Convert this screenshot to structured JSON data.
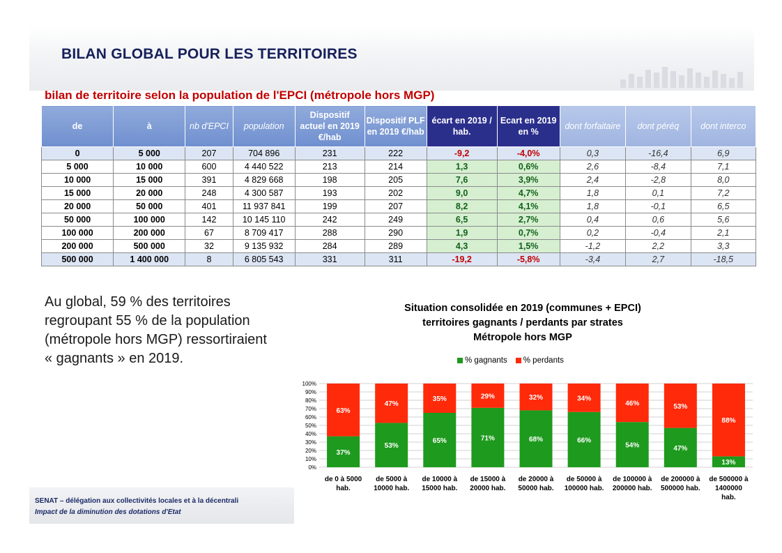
{
  "header": {
    "title": "BILAN GLOBAL POUR LES TERRITOIRES"
  },
  "subtitle": "bilan de territoire selon la population de l'EPCI (métropole hors MGP)",
  "table": {
    "headers": [
      "de",
      "à",
      "nb d'EPCI",
      "population",
      "Dispositif actuel en 2019 €/hab",
      "Dispositif PLF en 2019 €/hab",
      "écart en 2019 / hab.",
      "Ecart en 2019 en %",
      "dont forfaitaire",
      "dont péréq",
      "dont interco"
    ],
    "rows": [
      [
        "0",
        "5 000",
        "207",
        "704 896",
        "231",
        "222",
        "-9,2",
        "-4,0%",
        "0,3",
        "-16,4",
        "6,9"
      ],
      [
        "5 000",
        "10 000",
        "600",
        "4 440 522",
        "213",
        "214",
        "1,3",
        "0,6%",
        "2,6",
        "-8,4",
        "7,1"
      ],
      [
        "10 000",
        "15 000",
        "391",
        "4 829 668",
        "198",
        "205",
        "7,6",
        "3,9%",
        "2,4",
        "-2,8",
        "8,0"
      ],
      [
        "15 000",
        "20 000",
        "248",
        "4 300 587",
        "193",
        "202",
        "9,0",
        "4,7%",
        "1,8",
        "0,1",
        "7,2"
      ],
      [
        "20 000",
        "50 000",
        "401",
        "11 937 841",
        "199",
        "207",
        "8,2",
        "4,1%",
        "1,8",
        "-0,1",
        "6,5"
      ],
      [
        "50 000",
        "100 000",
        "142",
        "10 145 110",
        "242",
        "249",
        "6,5",
        "2,7%",
        "0,4",
        "0,6",
        "5,6"
      ],
      [
        "100 000",
        "200 000",
        "67",
        "8 709 417",
        "288",
        "290",
        "1,9",
        "0,7%",
        "0,2",
        "-0,4",
        "2,1"
      ],
      [
        "200 000",
        "500 000",
        "32",
        "9 135 932",
        "284",
        "289",
        "4,3",
        "1,5%",
        "-1,2",
        "2,2",
        "3,3"
      ],
      [
        "500 000",
        "1 400 000",
        "8",
        "6 805 543",
        "331",
        "311",
        "-19,2",
        "-5,8%",
        "-3,4",
        "2,7",
        "-18,5"
      ]
    ]
  },
  "global_text": "Au global, 59 % des territoires regroupant 55 % de la population (métropole hors MGP) ressortiraient « gagnants » en 2019.",
  "chart_data": {
    "type": "bar",
    "stacked": true,
    "title": [
      "Situation consolidée en 2019 (communes + EPCI)",
      "territoires gagnants / perdants par strates",
      "Métropole hors MGP"
    ],
    "legend_position": "top",
    "categories": [
      [
        "de 0 à 5000",
        "hab."
      ],
      [
        "de 5000 à",
        "10000 hab."
      ],
      [
        "de 10000 à",
        "15000 hab."
      ],
      [
        "de 15000 à",
        "20000 hab."
      ],
      [
        "de 20000 à",
        "50000 hab."
      ],
      [
        "de 50000 à",
        "100000 hab."
      ],
      [
        "de 100000 à",
        "200000 hab."
      ],
      [
        "de 200000 à",
        "500000 hab."
      ],
      [
        "de 500000 à",
        "1400000",
        "hab."
      ]
    ],
    "series": [
      {
        "name": "% gagnants",
        "color": "#1e9a1e",
        "values": [
          37,
          53,
          65,
          71,
          68,
          66,
          54,
          47,
          13
        ]
      },
      {
        "name": "% perdants",
        "color": "#ff2a0a",
        "values": [
          63,
          47,
          35,
          29,
          32,
          34,
          46,
          53,
          88
        ]
      }
    ],
    "ylim": [
      0,
      100
    ],
    "yticks": [
      "0%",
      "10%",
      "20%",
      "30%",
      "40%",
      "50%",
      "60%",
      "70%",
      "80%",
      "90%",
      "100%"
    ],
    "grid": true
  },
  "footer": {
    "line1": "SENAT – délégation aux collectivités locales et à la décentrali",
    "line2": "Impact de la diminution des dotations d'Etat"
  }
}
